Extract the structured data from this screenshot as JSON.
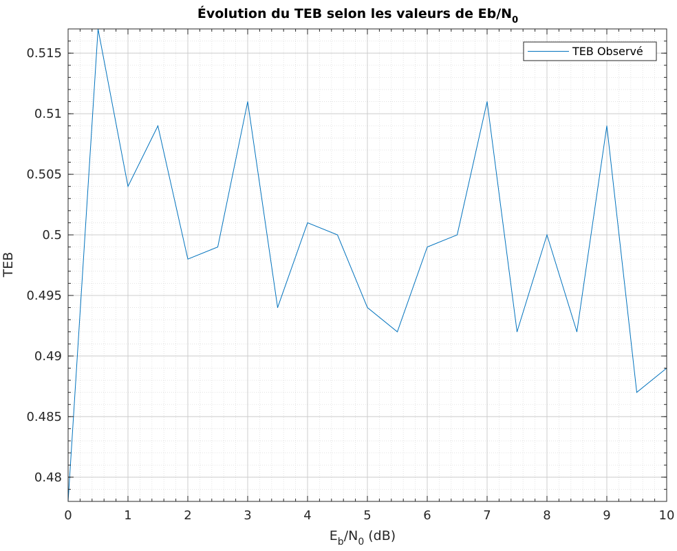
{
  "chart_data": {
    "type": "line",
    "title": "Évolution du TEB selon les valeurs de Eb/N",
    "title_subscript": "0",
    "xlabel": {
      "main": "E",
      "sub1": "b",
      "mid": "/N",
      "sub2": "0",
      "tail": " (dB)"
    },
    "ylabel": "TEB",
    "xlim": [
      0,
      10
    ],
    "ylim": [
      0.478,
      0.517
    ],
    "xticks": [
      0,
      1,
      2,
      3,
      4,
      5,
      6,
      7,
      8,
      9,
      10
    ],
    "xtick_labels": [
      "0",
      "1",
      "2",
      "3",
      "4",
      "5",
      "6",
      "7",
      "8",
      "9",
      "10"
    ],
    "yticks": [
      0.48,
      0.485,
      0.49,
      0.495,
      0.5,
      0.505,
      0.51,
      0.515
    ],
    "ytick_labels": [
      "0.48",
      "0.485",
      "0.49",
      "0.495",
      "0.5",
      "0.505",
      "0.51",
      "0.515"
    ],
    "grid": true,
    "minor_grid": true,
    "legend_position": "top-right",
    "series": [
      {
        "name": "TEB Observé",
        "color": "#0072BD",
        "x": [
          0,
          0.5,
          1,
          1.5,
          2,
          2.5,
          3,
          3.5,
          4,
          4.5,
          5,
          5.5,
          6,
          6.5,
          7,
          7.5,
          8,
          8.5,
          9,
          9.5,
          10
        ],
        "values": [
          0.478,
          0.517,
          0.504,
          0.509,
          0.498,
          0.499,
          0.511,
          0.494,
          0.501,
          0.5,
          0.494,
          0.492,
          0.499,
          0.5,
          0.511,
          0.492,
          0.5,
          0.492,
          0.509,
          0.487,
          0.489
        ]
      }
    ]
  }
}
